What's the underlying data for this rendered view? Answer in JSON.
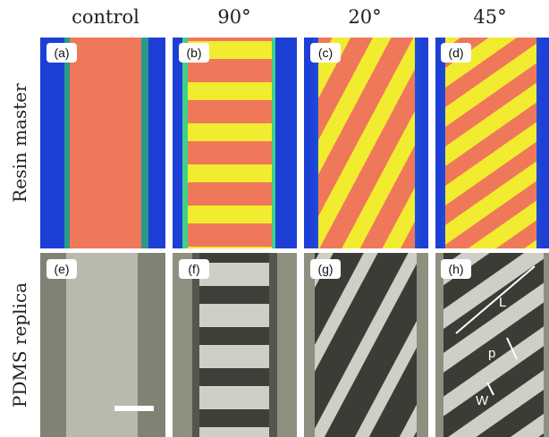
{
  "columns": [
    "control",
    "90°",
    "20°",
    "45°"
  ],
  "rows": [
    "Resin master",
    "PDMS replica"
  ],
  "panels": [
    "(a)",
    "(b)",
    "(c)",
    "(d)",
    "(e)",
    "(f)",
    "(g)",
    "(h)"
  ],
  "annotations": [
    "L",
    "p",
    "W"
  ]
}
